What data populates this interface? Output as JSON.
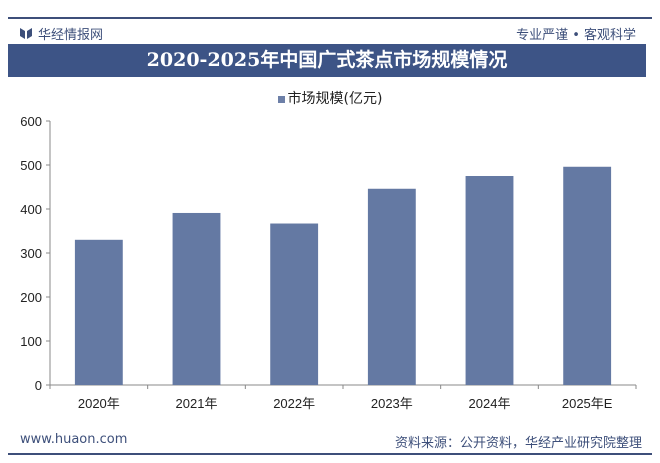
{
  "header": {
    "brand": "华经情报网",
    "slogan": "专业严谨 • 客观科学"
  },
  "footer": {
    "website": "www.huaon.com",
    "source": "资料来源：公开资料，华经产业研究院整理"
  },
  "colors": {
    "bar": "#6479a3",
    "title_bg": "#3d5486"
  },
  "chart_data": {
    "type": "bar",
    "title": "2020-2025年中国广式茶点市场规模情况",
    "categories": [
      "2020年",
      "2021年",
      "2022年",
      "2023年",
      "2024年",
      "2025年E"
    ],
    "series": [
      {
        "name": "市场规模(亿元)",
        "values": [
          330,
          391,
          367,
          446,
          475,
          496
        ]
      }
    ],
    "yticks": [
      0,
      100,
      200,
      300,
      400,
      500,
      600
    ],
    "ylim": [
      0,
      600
    ],
    "grid": false,
    "legend": "top"
  }
}
